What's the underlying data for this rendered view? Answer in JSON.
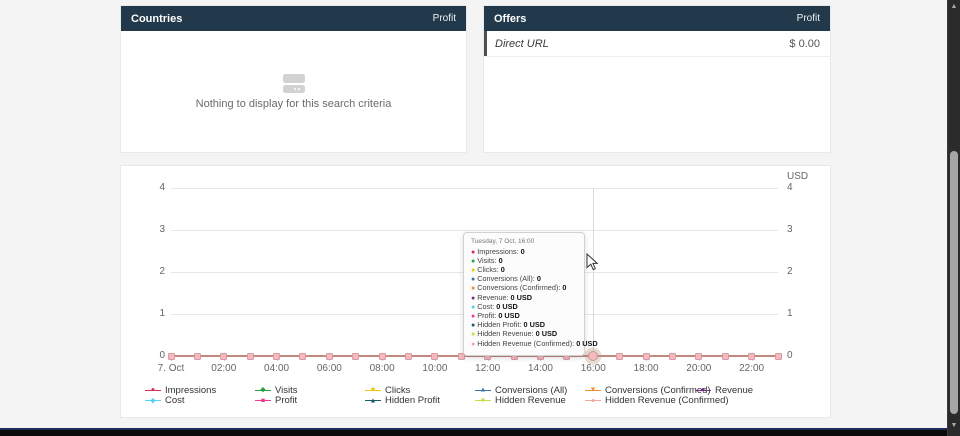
{
  "colors": {
    "header_bg": "#21394a",
    "page_bg": "#f4f4f5",
    "grid_line": "#e7e7e7",
    "axis_text": "#666666",
    "plotted_line": "#c0887f",
    "point_fill": "#f5b9c0",
    "point_border": "#db98a1"
  },
  "countries_panel": {
    "title": "Countries",
    "metric_header": "Profit",
    "empty_text": "Nothing to display for this search criteria"
  },
  "offers_panel": {
    "title": "Offers",
    "metric_header": "Profit",
    "rows": [
      {
        "name": "Direct URL",
        "value": "$ 0.00"
      }
    ]
  },
  "chart_data": {
    "type": "line",
    "title": "",
    "x": [
      "00:00",
      "01:00",
      "02:00",
      "03:00",
      "04:00",
      "05:00",
      "06:00",
      "07:00",
      "08:00",
      "09:00",
      "10:00",
      "11:00",
      "12:00",
      "13:00",
      "14:00",
      "15:00",
      "16:00",
      "17:00",
      "18:00",
      "19:00",
      "20:00",
      "21:00",
      "22:00",
      "23:00"
    ],
    "x_tick_labels": [
      "7. Oct",
      "02:00",
      "04:00",
      "06:00",
      "08:00",
      "10:00",
      "12:00",
      "14:00",
      "16:00",
      "18:00",
      "20:00",
      "22:00"
    ],
    "ylim": [
      0,
      4
    ],
    "y_ticks": [
      4,
      3,
      2,
      1,
      0
    ],
    "right_axis_title": "USD",
    "grid": true,
    "legend_position": "bottom",
    "hovered_x_index": 16,
    "series": [
      {
        "name": "Impressions",
        "color": "#d82c4e",
        "marker": "circle",
        "values": [
          0,
          0,
          0,
          0,
          0,
          0,
          0,
          0,
          0,
          0,
          0,
          0,
          0,
          0,
          0,
          0,
          0,
          0,
          0,
          0,
          0,
          0,
          0,
          0
        ]
      },
      {
        "name": "Visits",
        "color": "#2e9e43",
        "marker": "diamond",
        "values": [
          0,
          0,
          0,
          0,
          0,
          0,
          0,
          0,
          0,
          0,
          0,
          0,
          0,
          0,
          0,
          0,
          0,
          0,
          0,
          0,
          0,
          0,
          0,
          0
        ]
      },
      {
        "name": "Clicks",
        "color": "#f2c511",
        "marker": "square",
        "values": [
          0,
          0,
          0,
          0,
          0,
          0,
          0,
          0,
          0,
          0,
          0,
          0,
          0,
          0,
          0,
          0,
          0,
          0,
          0,
          0,
          0,
          0,
          0,
          0
        ]
      },
      {
        "name": "Conversions (All)",
        "color": "#3777b0",
        "marker": "triangle",
        "values": [
          0,
          0,
          0,
          0,
          0,
          0,
          0,
          0,
          0,
          0,
          0,
          0,
          0,
          0,
          0,
          0,
          0,
          0,
          0,
          0,
          0,
          0,
          0,
          0
        ]
      },
      {
        "name": "Conversions (Confirmed)",
        "color": "#ee8c34",
        "marker": "triangle-down",
        "values": [
          0,
          0,
          0,
          0,
          0,
          0,
          0,
          0,
          0,
          0,
          0,
          0,
          0,
          0,
          0,
          0,
          0,
          0,
          0,
          0,
          0,
          0,
          0,
          0
        ]
      },
      {
        "name": "Revenue",
        "color": "#7c2c8f",
        "marker": "circle",
        "values": [
          0,
          0,
          0,
          0,
          0,
          0,
          0,
          0,
          0,
          0,
          0,
          0,
          0,
          0,
          0,
          0,
          0,
          0,
          0,
          0,
          0,
          0,
          0,
          0
        ]
      },
      {
        "name": "Cost",
        "color": "#54d1f2",
        "marker": "diamond",
        "values": [
          0,
          0,
          0,
          0,
          0,
          0,
          0,
          0,
          0,
          0,
          0,
          0,
          0,
          0,
          0,
          0,
          0,
          0,
          0,
          0,
          0,
          0,
          0,
          0
        ]
      },
      {
        "name": "Profit",
        "color": "#ea3a93",
        "marker": "square",
        "values": [
          0,
          0,
          0,
          0,
          0,
          0,
          0,
          0,
          0,
          0,
          0,
          0,
          0,
          0,
          0,
          0,
          0,
          0,
          0,
          0,
          0,
          0,
          0,
          0
        ]
      },
      {
        "name": "Hidden Profit",
        "color": "#175e68",
        "marker": "triangle",
        "values": [
          0,
          0,
          0,
          0,
          0,
          0,
          0,
          0,
          0,
          0,
          0,
          0,
          0,
          0,
          0,
          0,
          0,
          0,
          0,
          0,
          0,
          0,
          0,
          0
        ]
      },
      {
        "name": "Hidden Revenue",
        "color": "#c5dc45",
        "marker": "triangle-down",
        "values": [
          0,
          0,
          0,
          0,
          0,
          0,
          0,
          0,
          0,
          0,
          0,
          0,
          0,
          0,
          0,
          0,
          0,
          0,
          0,
          0,
          0,
          0,
          0,
          0
        ]
      },
      {
        "name": "Hidden Revenue (Confirmed)",
        "color": "#f3a6a2",
        "marker": "circle",
        "values": [
          0,
          0,
          0,
          0,
          0,
          0,
          0,
          0,
          0,
          0,
          0,
          0,
          0,
          0,
          0,
          0,
          0,
          0,
          0,
          0,
          0,
          0,
          0,
          0
        ]
      }
    ]
  },
  "tooltip": {
    "header": "Tuesday, 7 Oct, 16:00",
    "rows": [
      {
        "label": "Impressions",
        "value": "0"
      },
      {
        "label": "Visits",
        "value": "0"
      },
      {
        "label": "Clicks",
        "value": "0"
      },
      {
        "label": "Conversions (All)",
        "value": "0"
      },
      {
        "label": "Conversions (Confirmed)",
        "value": "0"
      },
      {
        "label": "Revenue",
        "value": "0 USD"
      },
      {
        "label": "Cost",
        "value": "0 USD"
      },
      {
        "label": "Profit",
        "value": "0 USD"
      },
      {
        "label": "Hidden Profit",
        "value": "0 USD"
      },
      {
        "label": "Hidden Revenue",
        "value": "0 USD"
      },
      {
        "label": "Hidden Revenue (Confirmed)",
        "value": "0 USD"
      }
    ]
  }
}
